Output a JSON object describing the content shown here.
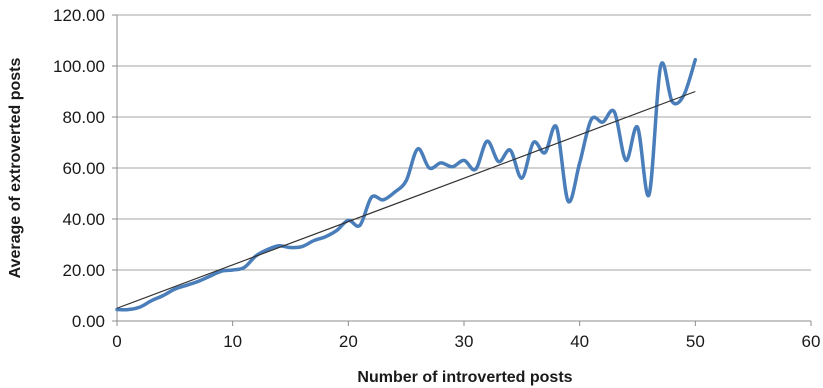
{
  "chart_data": {
    "type": "line",
    "xlabel": "Number of introverted posts",
    "ylabel": "Average of extroverted posts",
    "xlim": [
      0,
      60
    ],
    "ylim": [
      0,
      120
    ],
    "x_ticks": [
      "0",
      "10",
      "20",
      "30",
      "40",
      "50",
      "60"
    ],
    "y_ticks": [
      "0.00",
      "20.00",
      "40.00",
      "60.00",
      "80.00",
      "100.00",
      "120.00"
    ],
    "grid": "horizontal",
    "legend": "none",
    "series": [
      {
        "style": "smooth",
        "color": "#4a7ebb",
        "x": [
          0,
          1,
          2,
          3,
          4,
          5,
          6,
          7,
          8,
          9,
          10,
          11,
          12,
          13,
          14,
          15,
          16,
          17,
          18,
          19,
          20,
          21,
          22,
          23,
          24,
          25,
          26,
          27,
          28,
          29,
          30,
          31,
          32,
          33,
          34,
          35,
          36,
          37,
          38,
          39,
          40,
          41,
          42,
          43,
          44,
          45,
          46,
          47,
          48,
          49,
          50
        ],
        "values": [
          4.5,
          4.5,
          5.5,
          8,
          10,
          12.5,
          14,
          15.5,
          17.5,
          19.5,
          20,
          21,
          25.5,
          28,
          29.5,
          28.8,
          29.2,
          31.5,
          33,
          35.5,
          39.5,
          37.5,
          48.5,
          47.5,
          50.5,
          55,
          67.5,
          60,
          62,
          60.5,
          63,
          59.5,
          70.5,
          62.5,
          67,
          56,
          70,
          66,
          76,
          47,
          62,
          79,
          78,
          82,
          63,
          76,
          49.5,
          100,
          86,
          88.5,
          102.5
        ]
      },
      {
        "style": "linear-trend",
        "color": "#333333",
        "x": [
          0,
          50
        ],
        "values": [
          5,
          90
        ]
      }
    ]
  }
}
